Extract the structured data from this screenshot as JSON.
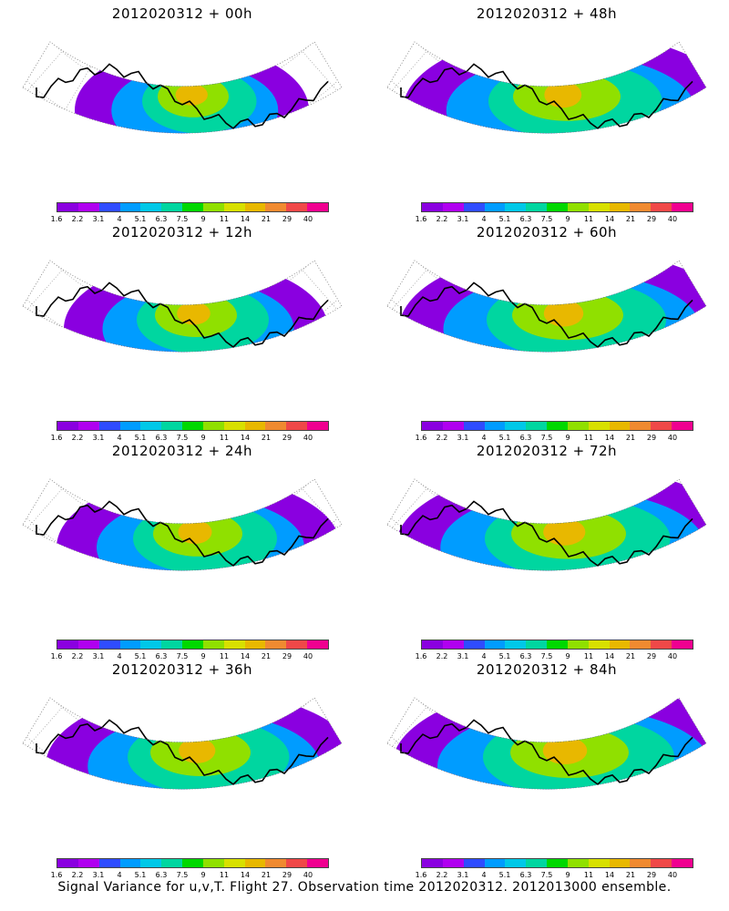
{
  "colors": [
    "#8a00e0",
    "#b000f0",
    "#2f4cff",
    "#009cff",
    "#00c8e8",
    "#00d6a0",
    "#00d800",
    "#90e000",
    "#d8e000",
    "#e8b800",
    "#f08a30",
    "#f04848",
    "#f00090"
  ],
  "colorbar_ticks": [
    "1.6",
    "2.2",
    "3.1",
    "4",
    "5.1",
    "6.3",
    "7.5",
    "9",
    "11",
    "14",
    "21",
    "29",
    "40"
  ],
  "panels": [
    {
      "title": "2012020312 + 00h",
      "intensity": 0.9,
      "spread": 0.35
    },
    {
      "title": "2012020312 + 48h",
      "intensity": 0.55,
      "spread": 0.85
    },
    {
      "title": "2012020312 + 12h",
      "intensity": 0.7,
      "spread": 0.5
    },
    {
      "title": "2012020312 + 60h",
      "intensity": 0.6,
      "spread": 0.9
    },
    {
      "title": "2012020312 + 24h",
      "intensity": 0.6,
      "spread": 0.6
    },
    {
      "title": "2012020312 + 72h",
      "intensity": 0.65,
      "spread": 0.95
    },
    {
      "title": "2012020312 + 36h",
      "intensity": 0.6,
      "spread": 0.75
    },
    {
      "title": "2012020312 + 84h",
      "intensity": 0.68,
      "spread": 1.0
    }
  ],
  "footer": "Signal Variance for u,v,T. Flight 27. Observation time 2012020312. 2012013000 ensemble."
}
